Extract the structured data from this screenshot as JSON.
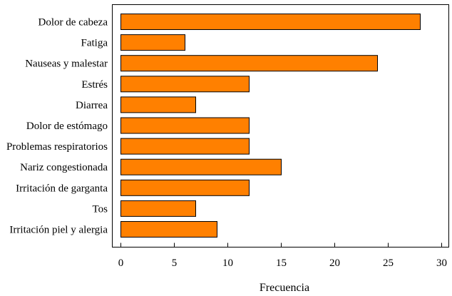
{
  "chart_data": {
    "type": "bar",
    "orientation": "horizontal",
    "categories": [
      "Dolor de cabeza",
      "Fatiga",
      "Nauseas y malestar",
      "Estrés",
      "Diarrea",
      "Dolor de estómago",
      "Problemas respiratorios",
      "Nariz congestionada",
      "Irritación de garganta",
      "Tos",
      "Irritación piel y alergia"
    ],
    "values": [
      28,
      6,
      24,
      12,
      7,
      12,
      12,
      15,
      12,
      7,
      9
    ],
    "xlabel": "Frecuencia",
    "ylabel": "",
    "xlim": [
      0,
      30
    ],
    "xticks": [
      0,
      5,
      10,
      15,
      20,
      25,
      30
    ],
    "bar_color": "#ff8000",
    "grid": false,
    "legend": "none"
  }
}
